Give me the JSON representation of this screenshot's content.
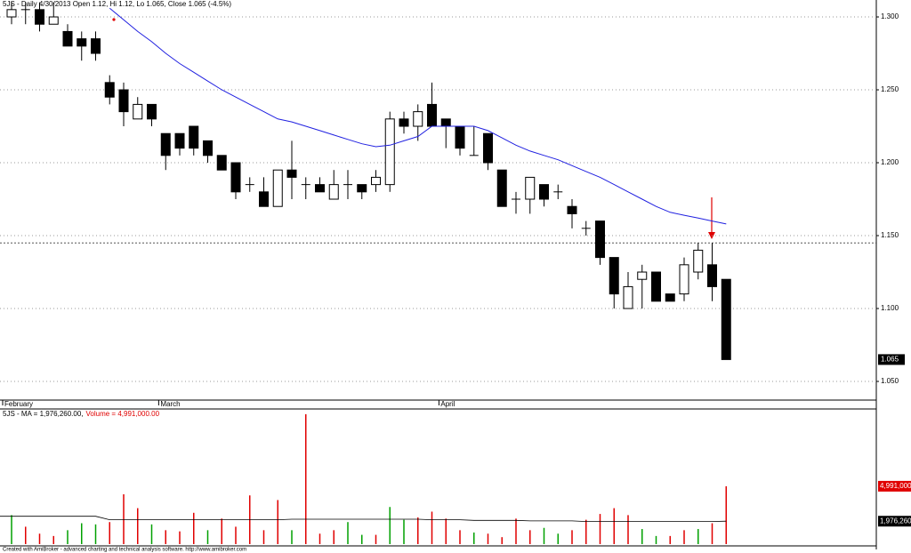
{
  "chart_data": [
    {
      "type": "candlestick",
      "title": "5JS - Daily 4/30/2013 Open 1.12, Hi 1.12, Lo 1.065, Close 1.065 (-4.5%)",
      "open": [
        1.3,
        1.305,
        1.305,
        1.295,
        1.29,
        1.285,
        1.285,
        1.255,
        1.25,
        1.23,
        1.24,
        1.22,
        1.22,
        1.225,
        1.215,
        1.205,
        1.2,
        1.185,
        1.18,
        1.17,
        1.195,
        1.185,
        1.185,
        1.175,
        1.185,
        1.185,
        1.185,
        1.185,
        1.23,
        1.225,
        1.24,
        1.23,
        1.225,
        1.205,
        1.22,
        1.195,
        1.175,
        1.175,
        1.185,
        1.18,
        1.17,
        1.155,
        1.16,
        1.135,
        1.1,
        1.12,
        1.125,
        1.11,
        1.11,
        1.125,
        1.13,
        1.12
      ],
      "high": [
        1.31,
        1.31,
        1.31,
        1.31,
        1.295,
        1.29,
        1.29,
        1.26,
        1.255,
        1.245,
        1.24,
        1.22,
        1.22,
        1.225,
        1.215,
        1.205,
        1.2,
        1.19,
        1.19,
        1.195,
        1.215,
        1.19,
        1.19,
        1.195,
        1.195,
        1.185,
        1.195,
        1.235,
        1.235,
        1.24,
        1.255,
        1.23,
        1.225,
        1.225,
        1.22,
        1.195,
        1.18,
        1.19,
        1.185,
        1.185,
        1.175,
        1.16,
        1.16,
        1.135,
        1.125,
        1.13,
        1.125,
        1.11,
        1.135,
        1.145,
        1.145,
        1.12
      ],
      "low": [
        1.295,
        1.295,
        1.29,
        1.295,
        1.28,
        1.27,
        1.27,
        1.24,
        1.225,
        1.23,
        1.225,
        1.195,
        1.205,
        1.205,
        1.2,
        1.195,
        1.175,
        1.18,
        1.17,
        1.17,
        1.175,
        1.175,
        1.18,
        1.175,
        1.175,
        1.175,
        1.18,
        1.18,
        1.22,
        1.215,
        1.225,
        1.21,
        1.205,
        1.205,
        1.195,
        1.17,
        1.165,
        1.165,
        1.17,
        1.175,
        1.155,
        1.15,
        1.13,
        1.1,
        1.1,
        1.1,
        1.105,
        1.105,
        1.105,
        1.12,
        1.105,
        1.065
      ],
      "close": [
        1.305,
        1.305,
        1.295,
        1.3,
        1.28,
        1.28,
        1.275,
        1.245,
        1.235,
        1.24,
        1.23,
        1.205,
        1.21,
        1.21,
        1.205,
        1.195,
        1.18,
        1.185,
        1.17,
        1.195,
        1.19,
        1.185,
        1.18,
        1.185,
        1.185,
        1.18,
        1.19,
        1.23,
        1.225,
        1.235,
        1.225,
        1.225,
        1.21,
        1.205,
        1.2,
        1.17,
        1.175,
        1.19,
        1.175,
        1.18,
        1.165,
        1.155,
        1.135,
        1.11,
        1.115,
        1.125,
        1.105,
        1.105,
        1.13,
        1.14,
        1.115,
        1.065
      ],
      "ma": [
        null,
        null,
        null,
        null,
        null,
        null,
        null,
        1.306,
        1.298,
        1.29,
        1.283,
        1.275,
        1.268,
        1.262,
        1.256,
        1.25,
        1.245,
        1.24,
        1.235,
        1.23,
        1.228,
        1.225,
        1.222,
        1.219,
        1.216,
        1.213,
        1.211,
        1.212,
        1.215,
        1.218,
        1.225,
        1.225,
        1.225,
        1.225,
        1.222,
        1.217,
        1.212,
        1.208,
        1.205,
        1.202,
        1.198,
        1.194,
        1.19,
        1.185,
        1.18,
        1.175,
        1.17,
        1.166,
        1.164,
        1.162,
        1.16,
        1.158
      ],
      "ma_color": "#2020e0",
      "up_color": "#ffffff",
      "down_color": "#000000",
      "close_label": "1.065",
      "hline": 1.145,
      "month_labels": [
        {
          "label": "February",
          "at": 0
        },
        {
          "label": "March",
          "at": 11
        },
        {
          "label": "April",
          "at": 31
        }
      ],
      "ylim": [
        1.0372,
        1.3116
      ],
      "yticks": [
        {
          "value": 1.3,
          "label": "1.300"
        },
        {
          "value": 1.25,
          "label": "1.250"
        },
        {
          "value": 1.2,
          "label": "1.200"
        },
        {
          "value": 1.15,
          "label": "1.150"
        },
        {
          "value": 1.1,
          "label": "1.100"
        },
        {
          "value": 1.05,
          "label": "1.050"
        }
      ],
      "grid": true
    },
    {
      "type": "volume",
      "title_prefix": "5JS - MA = 1,976,260.00,",
      "title_volume": "Volume = 4,991,000.00",
      "values": [
        2500000,
        1500000,
        900000,
        700000,
        1200000,
        1800000,
        1700000,
        1900000,
        4300000,
        3100000,
        1700000,
        1200000,
        1100000,
        2700000,
        1200000,
        2200000,
        1500000,
        4200000,
        1200000,
        3800000,
        1200000,
        11200000,
        900000,
        1200000,
        1900000,
        800000,
        800000,
        3200000,
        2100000,
        2300000,
        2800000,
        2200000,
        1200000,
        1000000,
        900000,
        600000,
        2200000,
        1200000,
        1400000,
        900000,
        1200000,
        2100000,
        2600000,
        3100000,
        2500000,
        1300000,
        700000,
        700000,
        1200000,
        1300000,
        1800000,
        4991000
      ],
      "bar_colors": [
        "#00a000",
        "#e00000",
        "#e00000",
        "#e00000",
        "#00a000",
        "#00a000",
        "#00a000",
        "#e00000",
        "#e00000",
        "#e00000",
        "#00a000",
        "#e00000",
        "#e00000",
        "#e00000",
        "#00a000",
        "#e00000",
        "#e00000",
        "#e00000",
        "#e00000",
        "#e00000",
        "#00a000",
        "#e00000",
        "#e00000",
        "#e00000",
        "#00a000",
        "#00a000",
        "#e00000",
        "#00a000",
        "#00a000",
        "#e00000",
        "#e00000",
        "#e00000",
        "#e00000",
        "#00a000",
        "#e00000",
        "#e00000",
        "#e00000",
        "#e00000",
        "#00a000",
        "#00a000",
        "#e00000",
        "#e00000",
        "#e00000",
        "#e00000",
        "#e00000",
        "#00a000",
        "#00a000",
        "#e00000",
        "#e00000",
        "#00a000",
        "#e00000",
        "#e00000"
      ],
      "ma": [
        2400000,
        2400000,
        2400000,
        2400000,
        2400000,
        2400000,
        2400000,
        2100000,
        2100000,
        2100000,
        2100000,
        2100000,
        2100000,
        2100000,
        2100000,
        2100000,
        2100000,
        2100000,
        2100000,
        2100000,
        2150000,
        2150000,
        2150000,
        2150000,
        2150000,
        2150000,
        2150000,
        2150000,
        2150000,
        2150000,
        2100000,
        2100000,
        2100000,
        2050000,
        2050000,
        2050000,
        2050000,
        2000000,
        2000000,
        2000000,
        2000000,
        1950000,
        1950000,
        1950000,
        1950000,
        1950000,
        1950000,
        1950000,
        1950000,
        1950000,
        1950000,
        1976260
      ],
      "ma_color": "#000000",
      "last_volume_label": "4,991,000",
      "last_ma_label": "1,976,260",
      "ylim": [
        0,
        11500000
      ]
    }
  ],
  "footer": "Created with AmiBroker - advanced charting and technical analysis software. http://www.amibroker.com"
}
